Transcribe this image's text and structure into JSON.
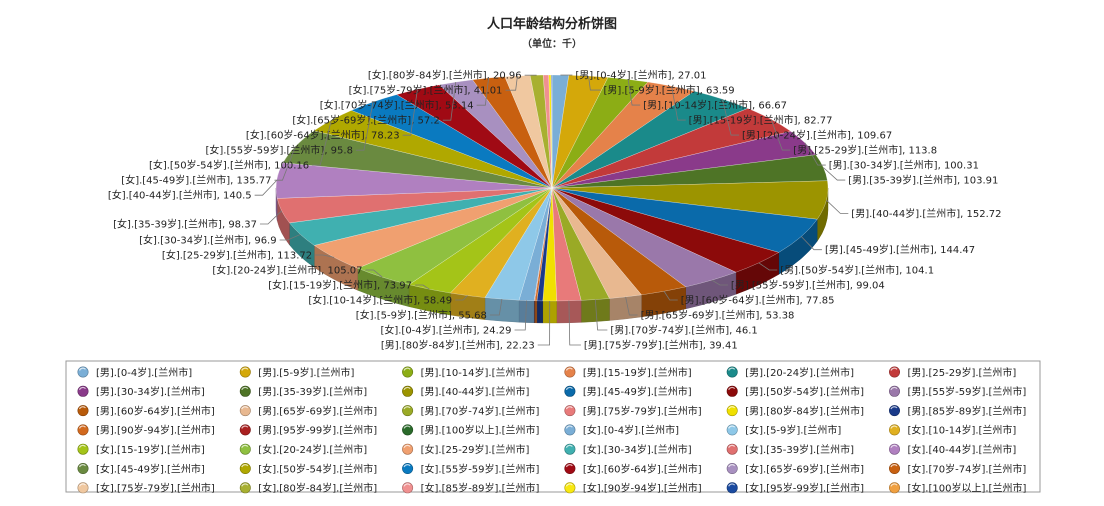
{
  "chart_data": {
    "type": "pie",
    "title": "人口年龄结构分析饼图",
    "subtitle": "（单位：千）",
    "slices": [
      {
        "label": "[男].[0-4岁].[兰州市]",
        "value": 27.01,
        "color": "#7aaed6"
      },
      {
        "label": "[男].[5-9岁].[兰州市]",
        "value": 63.59,
        "color": "#d4a80a"
      },
      {
        "label": "[男].[10-14岁].[兰州市]",
        "value": 66.67,
        "color": "#8cad15"
      },
      {
        "label": "[男].[15-19岁].[兰州市]",
        "value": 82.77,
        "color": "#e5824a"
      },
      {
        "label": "[男].[20-24岁].[兰州市]",
        "value": 109.67,
        "color": "#1a8a8a"
      },
      {
        "label": "[男].[25-29岁].[兰州市]",
        "value": 113.8,
        "color": "#c23a3a"
      },
      {
        "label": "[男].[30-34岁].[兰州市]",
        "value": 100.31,
        "color": "#8a3a8a"
      },
      {
        "label": "[男].[35-39岁].[兰州市]",
        "value": 103.91,
        "color": "#4e7426"
      },
      {
        "label": "[男].[40-44岁].[兰州市]",
        "value": 152.72,
        "color": "#9c9400"
      },
      {
        "label": "[男].[45-49岁].[兰州市]",
        "value": 144.47,
        "color": "#0a6aaa"
      },
      {
        "label": "[男].[50岁-54岁].[兰州市]",
        "value": 104.1,
        "color": "#8c0a0a"
      },
      {
        "label": "[男].[55岁-59岁].[兰州市]",
        "value": 99.04,
        "color": "#9a78aa"
      },
      {
        "label": "[男].[60岁-64岁].[兰州市]",
        "value": 77.85,
        "color": "#b85a0a"
      },
      {
        "label": "[男].[65岁-69岁].[兰州市]",
        "value": 53.38,
        "color": "#e8b890"
      },
      {
        "label": "[男].[70岁-74岁].[兰州市]",
        "value": 46.1,
        "color": "#9aaa26"
      },
      {
        "label": "[男].[75岁-79岁].[兰州市]",
        "value": 39.41,
        "color": "#e87a7a"
      },
      {
        "label": "[男].[80岁-84岁].[兰州市]",
        "value": 22.23,
        "color": "#f0e000"
      },
      {
        "label": "[男].[85岁-89岁].[兰州市]",
        "value": 9.5,
        "color": "#1a3a8a"
      },
      {
        "label": "[男].[90岁-94岁].[兰州市]",
        "value": 3.2,
        "color": "#d2691e"
      },
      {
        "label": "[男].[95岁-99岁].[兰州市]",
        "value": 1.0,
        "color": "#aa2020"
      },
      {
        "label": "[男].[100岁以上].[兰州市]",
        "value": 0.3,
        "color": "#2a6a2a"
      },
      {
        "label": "[女].[0-4岁].[兰州市]",
        "value": 24.29,
        "color": "#7aaed6"
      },
      {
        "label": "[女].[5-9岁].[兰州市]",
        "value": 55.68,
        "color": "#8ec8e8"
      },
      {
        "label": "[女].[10-14岁].[兰州市]",
        "value": 58.49,
        "color": "#e0b020"
      },
      {
        "label": "[女].[15-19岁].[兰州市]",
        "value": 73.97,
        "color": "#a4c418"
      },
      {
        "label": "[女].[20-24岁].[兰州市]",
        "value": 105.07,
        "color": "#8fc040"
      },
      {
        "label": "[女].[25-29岁].[兰州市]",
        "value": 113.72,
        "color": "#f0a070"
      },
      {
        "label": "[女].[30-34岁].[兰州市]",
        "value": 96.9,
        "color": "#40b0b0"
      },
      {
        "label": "[女].[35-39岁].[兰州市]",
        "value": 98.37,
        "color": "#e07070"
      },
      {
        "label": "[女].[40-44岁].[兰州市]",
        "value": 140.5,
        "color": "#b080c0"
      },
      {
        "label": "[女].[45-49岁].[兰州市]",
        "value": 135.77,
        "color": "#6a8a40"
      },
      {
        "label": "[女].[50岁-54岁].[兰州市]",
        "value": 100.16,
        "color": "#b0a800"
      },
      {
        "label": "[女].[55岁-59岁].[兰州市]",
        "value": 95.8,
        "color": "#0a7ac0"
      },
      {
        "label": "[女].[60岁-64岁].[兰州市]",
        "value": 78.23,
        "color": "#a00a14"
      },
      {
        "label": "[女].[65岁-69岁].[兰州市]",
        "value": 57.2,
        "color": "#a890c0"
      },
      {
        "label": "[女].[70岁-74岁].[兰州市]",
        "value": 53.14,
        "color": "#c86010"
      },
      {
        "label": "[女].[75岁-79岁].[兰州市]",
        "value": 41.01,
        "color": "#f0c8a0"
      },
      {
        "label": "[女].[80岁-84岁].[兰州市]",
        "value": 20.96,
        "color": "#a8b030"
      },
      {
        "label": "[女].[85岁-89岁].[兰州市]",
        "value": 9.0,
        "color": "#f09090"
      },
      {
        "label": "[女].[90岁-94岁].[兰州市]",
        "value": 3.6,
        "color": "#f8e810"
      },
      {
        "label": "[女].[95岁-99岁].[兰州市]",
        "value": 1.2,
        "color": "#1a4aa0"
      },
      {
        "label": "[女].[100岁以上].[兰州市]",
        "value": 0.4,
        "color": "#f0a040"
      }
    ],
    "value_labels": [
      {
        "slice": 8,
        "text": "[男].[40-44岁].[兰州市], 152.72"
      },
      {
        "slice": 7,
        "text": "[男].[35-39岁].[兰州市], 103.91"
      },
      {
        "slice": 6,
        "text": "[男].[30-34岁].[兰州市], 100.31"
      },
      {
        "slice": 9,
        "text": "[男].[45-49岁].[兰州市], 144.47"
      },
      {
        "slice": 5,
        "text": "[男].[25-29岁].[兰州市], 113.8"
      },
      {
        "slice": 10,
        "text": "[男].[50岁-54岁].[兰州市], 104.1"
      },
      {
        "slice": 4,
        "text": "[男].[20-24岁].[兰州市], 109.67"
      },
      {
        "slice": 11,
        "text": "[男].[55岁-59岁].[兰州市], 99.04"
      },
      {
        "slice": 3,
        "text": "[男].[15-19岁].[兰州市], 82.77"
      },
      {
        "slice": 12,
        "text": "[男].[60岁-64岁].[兰州市], 77.85"
      },
      {
        "slice": 2,
        "text": "[男].[10-14岁].[兰州市], 66.67"
      },
      {
        "slice": 13,
        "text": "[男].[65岁-69岁].[兰州市], 53.38"
      },
      {
        "slice": 1,
        "text": "[男].[5-9岁].[兰州市], 63.59"
      },
      {
        "slice": 14,
        "text": "[男].[70岁-74岁].[兰州市], 46.1"
      },
      {
        "slice": 0,
        "text": "[男].[0-4岁].[兰州市], 27.01"
      },
      {
        "slice": 15,
        "text": "[男].[75岁-79岁].[兰州市], 39.41"
      },
      {
        "slice": 37,
        "text": "[女].[80岁-84岁].[兰州市], 20.96"
      },
      {
        "slice": 16,
        "text": "[男].[80岁-84岁].[兰州市], 22.23"
      },
      {
        "slice": 36,
        "text": "[女].[75岁-79岁].[兰州市], 41.01"
      },
      {
        "slice": 21,
        "text": "[女].[0-4岁].[兰州市], 24.29"
      },
      {
        "slice": 35,
        "text": "[女].[70岁-74岁].[兰州市], 53.14"
      },
      {
        "slice": 22,
        "text": "[女].[5-9岁].[兰州市], 55.68"
      },
      {
        "slice": 34,
        "text": "[女].[65岁-69岁].[兰州市], 57.2"
      },
      {
        "slice": 23,
        "text": "[女].[10-14岁].[兰州市], 58.49"
      },
      {
        "slice": 33,
        "text": "[女].[60岁-64岁].[兰州市], 78.23"
      },
      {
        "slice": 24,
        "text": "[女].[15-19岁].[兰州市], 73.97"
      },
      {
        "slice": 32,
        "text": "[女].[55岁-59岁].[兰州市], 95.8"
      },
      {
        "slice": 25,
        "text": "[女].[20-24岁].[兰州市], 105.07"
      },
      {
        "slice": 31,
        "text": "[女].[50岁-54岁].[兰州市], 100.16"
      },
      {
        "slice": 26,
        "text": "[女].[25-29岁].[兰州市], 113.72"
      },
      {
        "slice": 30,
        "text": "[女].[45-49岁].[兰州市], 135.77"
      },
      {
        "slice": 27,
        "text": "[女].[30-34岁].[兰州市], 96.9"
      },
      {
        "slice": 29,
        "text": "[女].[40-44岁].[兰州市], 140.5"
      },
      {
        "slice": 28,
        "text": "[女].[35-39岁].[兰州市], 98.37"
      }
    ],
    "legend": {
      "placement": "bottom",
      "columns": 6
    }
  }
}
